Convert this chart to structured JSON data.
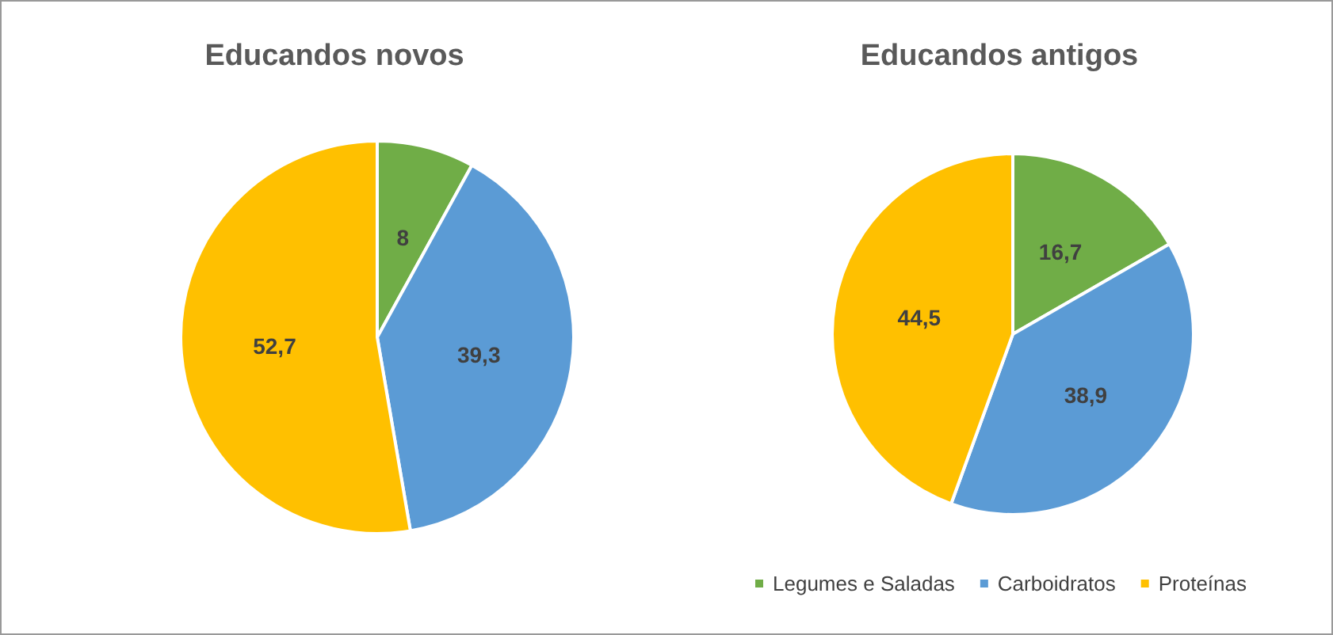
{
  "chart_data": [
    {
      "type": "pie",
      "title": "Educandos novos",
      "categories": [
        null,
        null,
        null
      ],
      "values": [
        8,
        39.3,
        52.7
      ],
      "value_labels": [
        "8",
        "39,3",
        "52,7"
      ],
      "colors": [
        "#70ad47",
        "#5b9bd5",
        "#ffc000"
      ],
      "legend": false
    },
    {
      "type": "pie",
      "title": "Educandos antigos",
      "categories": [
        "Legumes e Saladas",
        "Carboidratos",
        "Proteínas"
      ],
      "values": [
        16.7,
        38.9,
        44.5
      ],
      "value_labels": [
        "16,7",
        "38,9",
        "44,5"
      ],
      "colors": [
        "#70ad47",
        "#5b9bd5",
        "#ffc000"
      ],
      "legend": "bottom"
    }
  ]
}
